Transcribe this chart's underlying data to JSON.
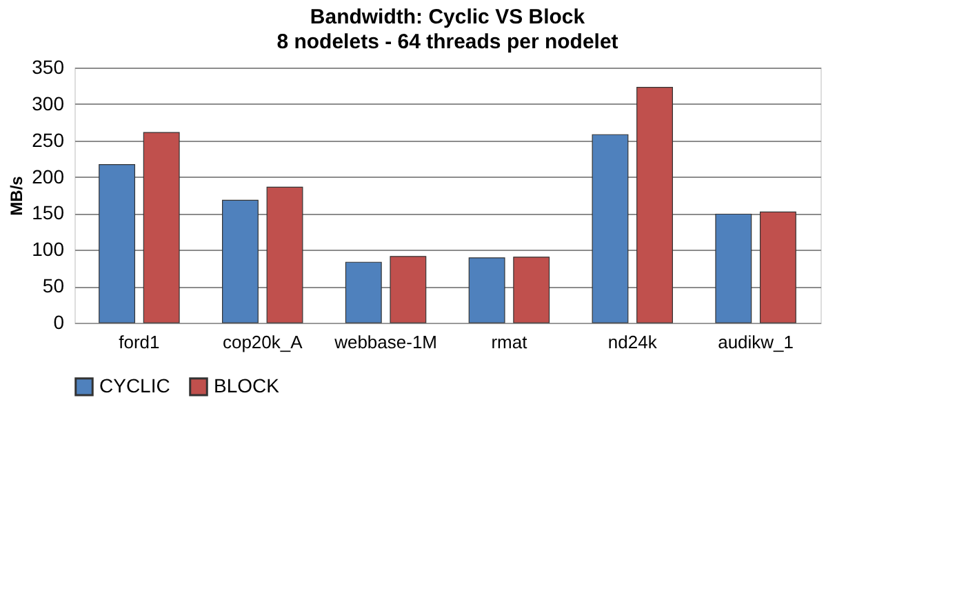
{
  "chart_data": {
    "type": "bar",
    "title": "Bandwidth: Cyclic VS Block",
    "subtitle": "8 nodelets - 64 threads per nodelet",
    "ylabel": "MB/s",
    "categories": [
      "ford1",
      "cop20k_A",
      "webbase-1M",
      "rmat",
      "nd24k",
      "audikw_1"
    ],
    "series": [
      {
        "name": "CYCLIC",
        "color": "#4f81bd",
        "values": [
          217,
          168,
          83,
          89,
          258,
          149
        ]
      },
      {
        "name": "BLOCK",
        "color": "#c0504d",
        "values": [
          261,
          186,
          91,
          90,
          323,
          152
        ]
      }
    ],
    "ylim": [
      0,
      350
    ],
    "yticks": [
      0,
      50,
      100,
      150,
      200,
      250,
      300,
      350
    ],
    "grid": "y",
    "legend": "bottom"
  }
}
